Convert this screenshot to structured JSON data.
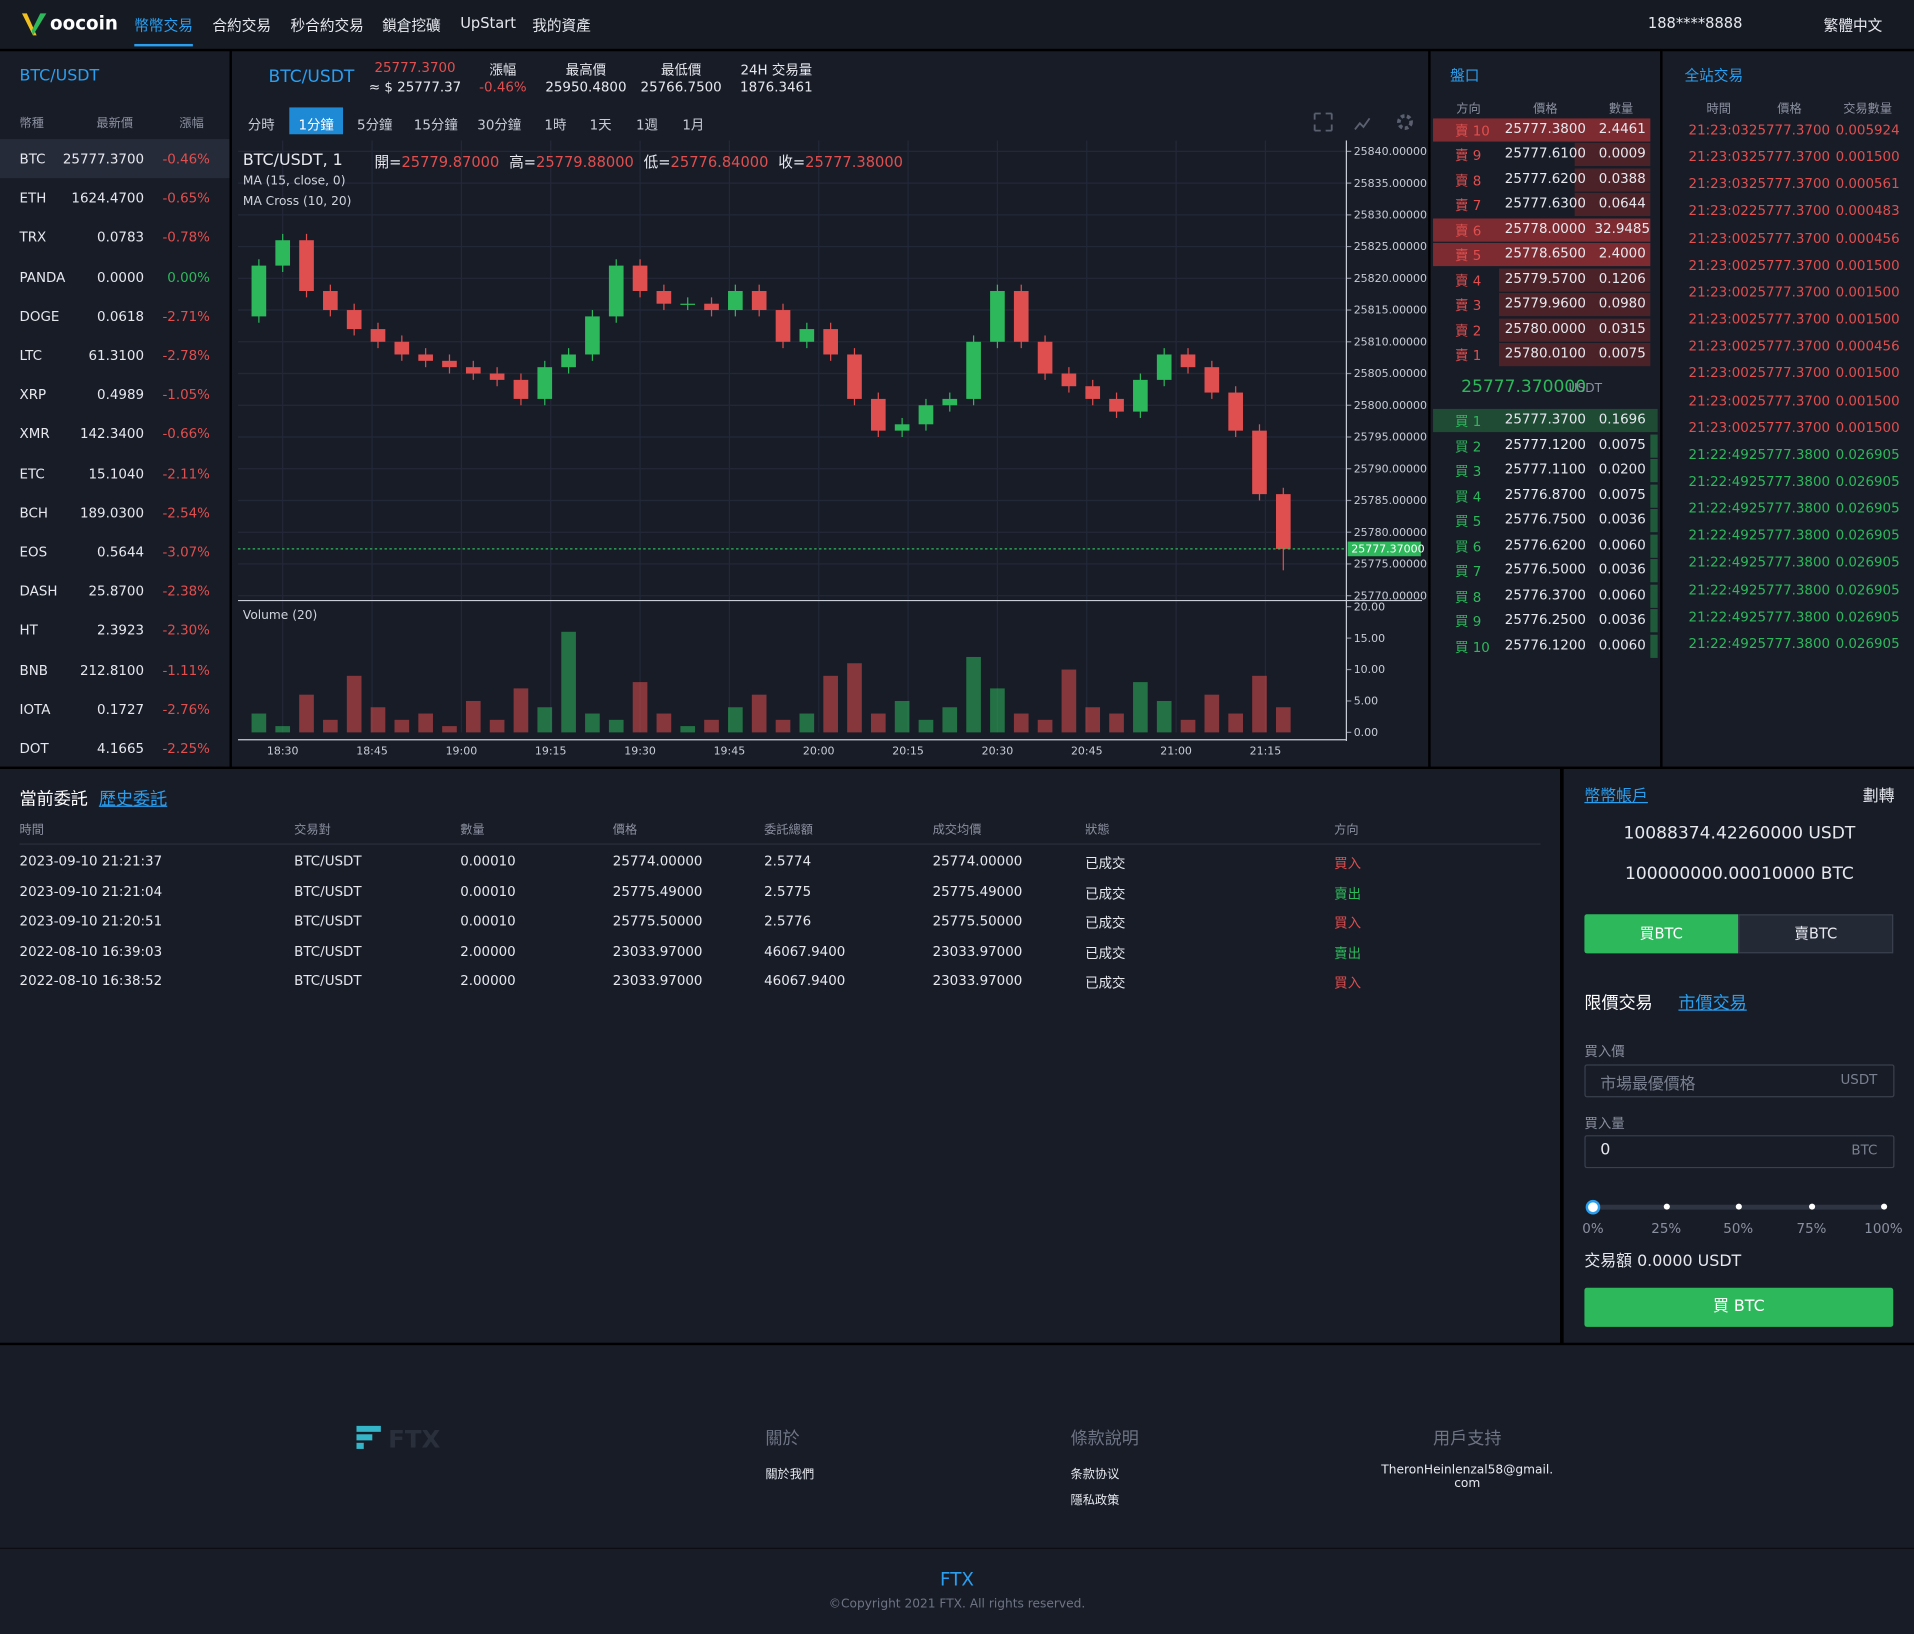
{
  "nav": {
    "logo": "oocoin",
    "items": [
      "幣幣交易",
      "合約交易",
      "秒合約交易",
      "鎖倉挖礦",
      "UpStart",
      "我的資產"
    ],
    "user": "188****8888",
    "lang": "繁體中文"
  },
  "pair_list": {
    "title": "BTC/USDT",
    "headers": [
      "幣種",
      "最新價",
      "漲幅"
    ],
    "rows": [
      [
        "BTC",
        "25777.3700",
        "-0.46%"
      ],
      [
        "ETH",
        "1624.4700",
        "-0.65%"
      ],
      [
        "TRX",
        "0.0783",
        "-0.78%"
      ],
      [
        "PANDA",
        "0.0000",
        "0.00%"
      ],
      [
        "DOGE",
        "0.0618",
        "-2.71%"
      ],
      [
        "LTC",
        "61.3100",
        "-2.78%"
      ],
      [
        "XRP",
        "0.4989",
        "-1.05%"
      ],
      [
        "XMR",
        "142.3400",
        "-0.66%"
      ],
      [
        "ETC",
        "15.1040",
        "-2.11%"
      ],
      [
        "BCH",
        "189.0300",
        "-2.54%"
      ],
      [
        "EOS",
        "0.5644",
        "-3.07%"
      ],
      [
        "DASH",
        "25.8700",
        "-2.38%"
      ],
      [
        "HT",
        "2.3923",
        "-2.30%"
      ],
      [
        "BNB",
        "212.8100",
        "-1.11%"
      ],
      [
        "IOTA",
        "0.1727",
        "-2.76%"
      ],
      [
        "DOT",
        "4.1665",
        "-2.25%"
      ]
    ]
  },
  "ticker": {
    "pair": "BTC/USDT",
    "price": "25777.3700",
    "price_usd": "≈ $ 25777.37",
    "stats": [
      {
        "label": "漲幅",
        "value": "-0.46%"
      },
      {
        "label": "最高價",
        "value": "25950.4800"
      },
      {
        "label": "最低價",
        "value": "25766.7500"
      },
      {
        "label": "24H 交易量",
        "value": "1876.3461"
      }
    ]
  },
  "intervals": [
    "分時",
    "1分鐘",
    "5分鐘",
    "15分鐘",
    "30分鐘",
    "1時",
    "1天",
    "1週",
    "1月"
  ],
  "chart_legend": {
    "symbol": "BTC/USDT, 1",
    "ohlc": [
      {
        "label": "開=",
        "value": "25779.87000"
      },
      {
        "label": "高=",
        "value": "25779.88000"
      },
      {
        "label": "低=",
        "value": "25776.84000"
      },
      {
        "label": "收=",
        "value": "25777.38000"
      }
    ],
    "studies": [
      "MA (15, close, 0)",
      "MA Cross (10, 20)"
    ],
    "volume": "Volume (20)"
  },
  "chart_data": {
    "type": "candlestick",
    "up_color": "#2eb85c",
    "down_color": "#e04f4f",
    "grid": true,
    "x": [
      1106,
      1110,
      1114,
      1118,
      1122,
      1126,
      1130,
      1134,
      1138,
      1142,
      1146,
      1150,
      1154,
      1158,
      1162,
      1166,
      1170,
      1174,
      1178,
      1182,
      1186,
      1190,
      1194,
      1198,
      1202,
      1206,
      1210,
      1214,
      1218,
      1222,
      1226,
      1230,
      1234,
      1238,
      1242,
      1246,
      1250,
      1254,
      1258,
      1262,
      1266,
      1270,
      1274,
      1278
    ],
    "open": [
      25814,
      25822,
      25826,
      25818,
      25815,
      25812,
      25810,
      25808,
      25807,
      25806,
      25805,
      25804,
      25801,
      25806,
      25808,
      25814,
      25822,
      25818,
      25816,
      25816,
      25815,
      25818,
      25815,
      25810,
      25812,
      25808,
      25801,
      25796,
      25797,
      25800,
      25801,
      25810,
      25818,
      25810,
      25805,
      25803,
      25801,
      25799,
      25804,
      25808,
      25806,
      25802,
      25796,
      25786
    ],
    "high": [
      25823,
      25827,
      25827,
      25819,
      25816,
      25813,
      25811,
      25809,
      25808,
      25807,
      25806,
      25805,
      25807,
      25809,
      25815,
      25823,
      25823,
      25819,
      25817,
      25817,
      25819,
      25819,
      25816,
      25813,
      25813,
      25809,
      25802,
      25798,
      25801,
      25802,
      25811,
      25819,
      25819,
      25811,
      25806,
      25804,
      25802,
      25805,
      25809,
      25809,
      25807,
      25803,
      25797,
      25787
    ],
    "low": [
      25813,
      25821,
      25817,
      25814,
      25811,
      25809,
      25807,
      25806,
      25805,
      25804,
      25803,
      25800,
      25800,
      25805,
      25807,
      25813,
      25817,
      25815,
      25815,
      25814,
      25814,
      25814,
      25809,
      25809,
      25807,
      25800,
      25795,
      25795,
      25796,
      25799,
      25800,
      25809,
      25809,
      25804,
      25802,
      25800,
      25798,
      25798,
      25803,
      25805,
      25801,
      25795,
      25785,
      25774
    ],
    "close": [
      25822,
      25826,
      25818,
      25815,
      25812,
      25810,
      25808,
      25807,
      25806,
      25805,
      25804,
      25801,
      25806,
      25808,
      25814,
      25822,
      25818,
      25816,
      25816,
      25815,
      25818,
      25815,
      25810,
      25812,
      25808,
      25801,
      25796,
      25797,
      25800,
      25801,
      25810,
      25818,
      25810,
      25805,
      25803,
      25801,
      25799,
      25804,
      25808,
      25806,
      25802,
      25796,
      25786,
      25777.37
    ],
    "volume": [
      3,
      1,
      6,
      2,
      9,
      4,
      2,
      3,
      1,
      5,
      2,
      7,
      4,
      16,
      3,
      2,
      8,
      3,
      1,
      2,
      4,
      6,
      2,
      3,
      9,
      11,
      3,
      5,
      2,
      4,
      12,
      7,
      3,
      2,
      10,
      4,
      3,
      8,
      5,
      2,
      6,
      3,
      9,
      4
    ],
    "xlim": [
      1102.5,
      1289
    ],
    "xticks": [
      {
        "value": 1110,
        "label": "18:30"
      },
      {
        "value": 1125,
        "label": "18:45"
      },
      {
        "value": 1140,
        "label": "19:00"
      },
      {
        "value": 1155,
        "label": "19:15"
      },
      {
        "value": 1170,
        "label": "19:30"
      },
      {
        "value": 1185,
        "label": "19:45"
      },
      {
        "value": 1200,
        "label": "20:00"
      },
      {
        "value": 1215,
        "label": "20:15"
      },
      {
        "value": 1230,
        "label": "20:30"
      },
      {
        "value": 1245,
        "label": "20:45"
      },
      {
        "value": 1260,
        "label": "21:00"
      },
      {
        "value": 1275,
        "label": "21:15"
      }
    ],
    "ylim": [
      25769,
      25841
    ],
    "yticks": [
      {
        "value": 25840,
        "label": "25840.00000"
      },
      {
        "value": 25835,
        "label": "25835.00000"
      },
      {
        "value": 25830,
        "label": "25830.00000"
      },
      {
        "value": 25825,
        "label": "25825.00000"
      },
      {
        "value": 25820,
        "label": "25820.00000"
      },
      {
        "value": 25815,
        "label": "25815.00000"
      },
      {
        "value": 25810,
        "label": "25810.00000"
      },
      {
        "value": 25805,
        "label": "25805.00000"
      },
      {
        "value": 25800,
        "label": "25800.00000"
      },
      {
        "value": 25795,
        "label": "25795.00000"
      },
      {
        "value": 25790,
        "label": "25790.00000"
      },
      {
        "value": 25785,
        "label": "25785.00000"
      },
      {
        "value": 25780,
        "label": "25780.00000"
      },
      {
        "value": 25775,
        "label": "25775.00000"
      },
      {
        "value": 25770,
        "label": "25770.00000"
      }
    ],
    "volume_ylim": [
      0,
      20
    ],
    "volume_yticks": [
      {
        "value": 20,
        "label": "20.00"
      },
      {
        "value": 15,
        "label": "15.00"
      },
      {
        "value": 10,
        "label": "10.00"
      },
      {
        "value": 5,
        "label": "5.00"
      },
      {
        "value": 0,
        "label": "0.00"
      }
    ],
    "last_price": {
      "value": 25777.37,
      "label": "25777.37000"
    }
  },
  "order_book": {
    "title": "盤口",
    "headers": [
      "方向",
      "價格",
      "數量"
    ],
    "asks": [
      [
        "賣 10",
        "25777.3800",
        "2.4461"
      ],
      [
        "賣 9",
        "25777.6100",
        "0.0009"
      ],
      [
        "賣 8",
        "25777.6200",
        "0.0388"
      ],
      [
        "賣 7",
        "25777.6300",
        "0.0644"
      ],
      [
        "賣 6",
        "25778.0000",
        "32.9485"
      ],
      [
        "賣 5",
        "25778.6500",
        "2.4000"
      ],
      [
        "賣 4",
        "25779.5700",
        "0.1206"
      ],
      [
        "賣 3",
        "25779.9600",
        "0.0980"
      ],
      [
        "賣 2",
        "25780.0000",
        "0.0315"
      ],
      [
        "賣 1",
        "25780.0100",
        "0.0075"
      ]
    ],
    "mid_price": "25777.370000",
    "mid_unit": "USDT",
    "bids": [
      [
        "買 1",
        "25777.3700",
        "0.1696"
      ],
      [
        "買 2",
        "25777.1200",
        "0.0075"
      ],
      [
        "買 3",
        "25777.1100",
        "0.0200"
      ],
      [
        "買 4",
        "25776.8700",
        "0.0075"
      ],
      [
        "買 5",
        "25776.7500",
        "0.0036"
      ],
      [
        "買 6",
        "25776.6200",
        "0.0060"
      ],
      [
        "買 7",
        "25776.5000",
        "0.0036"
      ],
      [
        "買 8",
        "25776.3700",
        "0.0060"
      ],
      [
        "買 9",
        "25776.2500",
        "0.0036"
      ],
      [
        "買 10",
        "25776.1200",
        "0.0060"
      ]
    ]
  },
  "trades": {
    "title": "全站交易",
    "headers": [
      "時間",
      "價格",
      "交易數量"
    ],
    "rows": [
      {
        "cells": [
          "21:23:03",
          "25777.3700",
          "0.005924"
        ],
        "color": "#e04f4f"
      },
      {
        "cells": [
          "21:23:03",
          "25777.3700",
          "0.001500"
        ],
        "color": "#e04f4f"
      },
      {
        "cells": [
          "21:23:03",
          "25777.3700",
          "0.000561"
        ],
        "color": "#e04f4f"
      },
      {
        "cells": [
          "21:23:02",
          "25777.3700",
          "0.000483"
        ],
        "color": "#e04f4f"
      },
      {
        "cells": [
          "21:23:00",
          "25777.3700",
          "0.000456"
        ],
        "color": "#e04f4f"
      },
      {
        "cells": [
          "21:23:00",
          "25777.3700",
          "0.001500"
        ],
        "color": "#e04f4f"
      },
      {
        "cells": [
          "21:23:00",
          "25777.3700",
          "0.001500"
        ],
        "color": "#e04f4f"
      },
      {
        "cells": [
          "21:23:00",
          "25777.3700",
          "0.001500"
        ],
        "color": "#e04f4f"
      },
      {
        "cells": [
          "21:23:00",
          "25777.3700",
          "0.000456"
        ],
        "color": "#e04f4f"
      },
      {
        "cells": [
          "21:23:00",
          "25777.3700",
          "0.001500"
        ],
        "color": "#e04f4f"
      },
      {
        "cells": [
          "21:23:00",
          "25777.3700",
          "0.001500"
        ],
        "color": "#e04f4f"
      },
      {
        "cells": [
          "21:23:00",
          "25777.3700",
          "0.001500"
        ],
        "color": "#e04f4f"
      },
      {
        "cells": [
          "21:22:49",
          "25777.3800",
          "0.026905"
        ],
        "color": "#2eb85c"
      },
      {
        "cells": [
          "21:22:49",
          "25777.3800",
          "0.026905"
        ],
        "color": "#2eb85c"
      },
      {
        "cells": [
          "21:22:49",
          "25777.3800",
          "0.026905"
        ],
        "color": "#2eb85c"
      },
      {
        "cells": [
          "21:22:49",
          "25777.3800",
          "0.026905"
        ],
        "color": "#2eb85c"
      },
      {
        "cells": [
          "21:22:49",
          "25777.3800",
          "0.026905"
        ],
        "color": "#2eb85c"
      },
      {
        "cells": [
          "21:22:49",
          "25777.3800",
          "0.026905"
        ],
        "color": "#2eb85c"
      },
      {
        "cells": [
          "21:22:49",
          "25777.3800",
          "0.026905"
        ],
        "color": "#2eb85c"
      },
      {
        "cells": [
          "21:22:49",
          "25777.3800",
          "0.026905"
        ],
        "color": "#2eb85c"
      }
    ]
  },
  "orders": {
    "tabs": [
      "當前委託",
      "歷史委託"
    ],
    "headers": [
      "時間",
      "交易對",
      "數量",
      "價格",
      "委託總額",
      "成交均價",
      "狀態",
      "方向"
    ],
    "rows": [
      {
        "cells": [
          "2023-09-10 21:21:37",
          "BTC/USDT",
          "0.00010",
          "25774.00000",
          "2.5774",
          "25774.00000",
          "已成交",
          "買入"
        ],
        "color": "#e04f4f"
      },
      {
        "cells": [
          "2023-09-10 21:21:04",
          "BTC/USDT",
          "0.00010",
          "25775.49000",
          "2.5775",
          "25775.49000",
          "已成交",
          "賣出"
        ],
        "color": "#2eb85c"
      },
      {
        "cells": [
          "2023-09-10 21:20:51",
          "BTC/USDT",
          "0.00010",
          "25775.50000",
          "2.5776",
          "25775.50000",
          "已成交",
          "買入"
        ],
        "color": "#e04f4f"
      },
      {
        "cells": [
          "2022-08-10 16:39:03",
          "BTC/USDT",
          "2.00000",
          "23033.97000",
          "46067.9400",
          "23033.97000",
          "已成交",
          "賣出"
        ],
        "color": "#2eb85c"
      },
      {
        "cells": [
          "2022-08-10 16:38:52",
          "BTC/USDT",
          "2.00000",
          "23033.97000",
          "46067.9400",
          "23033.97000",
          "已成交",
          "買入"
        ],
        "color": "#e04f4f"
      }
    ]
  },
  "account": {
    "title": "幣幣帳戶",
    "transfer": "劃轉",
    "balances": [
      "10088374.42260000 USDT",
      "100000000.00010000 BTC"
    ],
    "buy_tab": "買BTC",
    "sell_tab": "賣BTC",
    "limit_tab": "限價交易",
    "market_tab": "市價交易",
    "price_label": "買入價",
    "price_placeholder": "市場最優價格",
    "price_unit": "USDT",
    "amount_label": "買入量",
    "amount_value": "0",
    "amount_unit": "BTC",
    "percents": [
      "0%",
      "25%",
      "50%",
      "75%",
      "100%"
    ],
    "total": "交易額 0.0000 USDT",
    "submit": "買 BTC"
  },
  "footer": {
    "logo": "FTX",
    "columns": [
      {
        "title": "關於",
        "links": [
          "關於我們"
        ]
      },
      {
        "title": "條款說明",
        "links": [
          "条款协议",
          "隱私政策"
        ]
      },
      {
        "title": "用戶支持",
        "links": [
          "TheronHeinlenzal58@gmail.com"
        ]
      }
    ],
    "brand": "FTX",
    "copyright": "©Copyright 2021 FTX. All rights reserved."
  }
}
